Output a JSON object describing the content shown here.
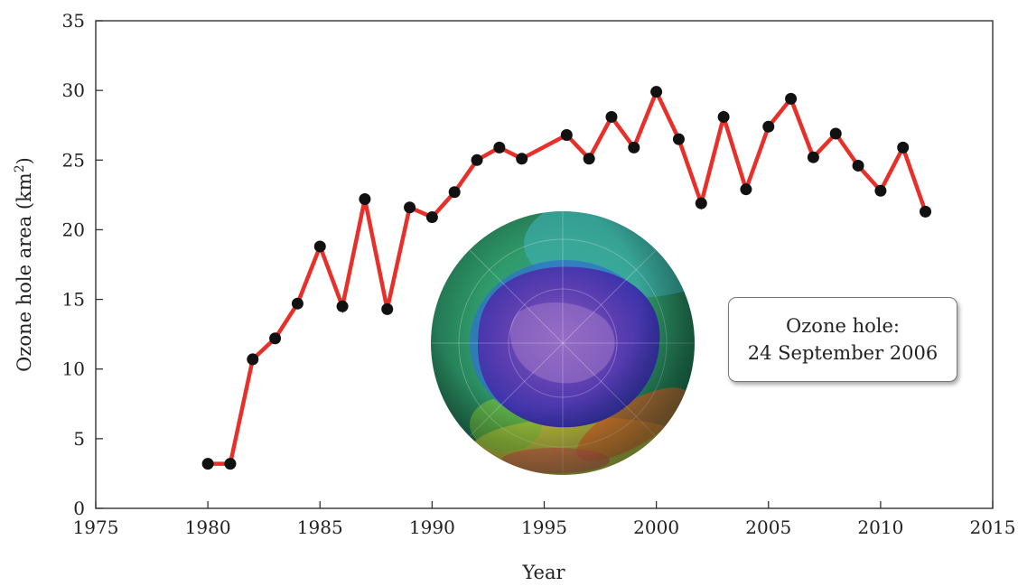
{
  "chart_data": {
    "type": "line",
    "xlabel": "Year",
    "ylabel": "Ozone hole area (km",
    "ylabel_sup": "2",
    "ylabel_close": ")",
    "xlim": [
      1975,
      2015
    ],
    "ylim": [
      0,
      35
    ],
    "x_ticks": [
      "1975",
      "1980",
      "1985",
      "1990",
      "1995",
      "2000",
      "2005",
      "2010",
      "2015"
    ],
    "y_ticks": [
      "0",
      "5",
      "10",
      "15",
      "20",
      "25",
      "30",
      "35"
    ],
    "grid": false,
    "line_color": "#e8302a",
    "marker_color": "#111111",
    "series": [
      {
        "x": [
          1980,
          1981,
          1982,
          1983,
          1984,
          1985,
          1986,
          1987,
          1988,
          1989,
          1990,
          1991,
          1992,
          1993,
          1994,
          1996,
          1997,
          1998,
          1999,
          2000,
          2001,
          2002,
          2003,
          2004,
          2005,
          2006,
          2007,
          2008,
          2009,
          2010,
          2011,
          2012
        ],
        "y": [
          3.2,
          3.2,
          10.7,
          12.2,
          14.7,
          18.8,
          14.5,
          22.2,
          14.3,
          21.6,
          20.9,
          22.7,
          25.0,
          25.9,
          25.1,
          26.8,
          25.1,
          28.1,
          25.9,
          29.9,
          26.5,
          21.9,
          28.1,
          22.9,
          27.4,
          29.4,
          25.2,
          26.9,
          24.6,
          22.8,
          25.9,
          21.3
        ]
      }
    ],
    "annotations": [
      {
        "line1": "Ozone hole:",
        "line2": "24 September 2006"
      }
    ]
  },
  "inset": {
    "icon": "ozone-hole-globe-icon"
  }
}
